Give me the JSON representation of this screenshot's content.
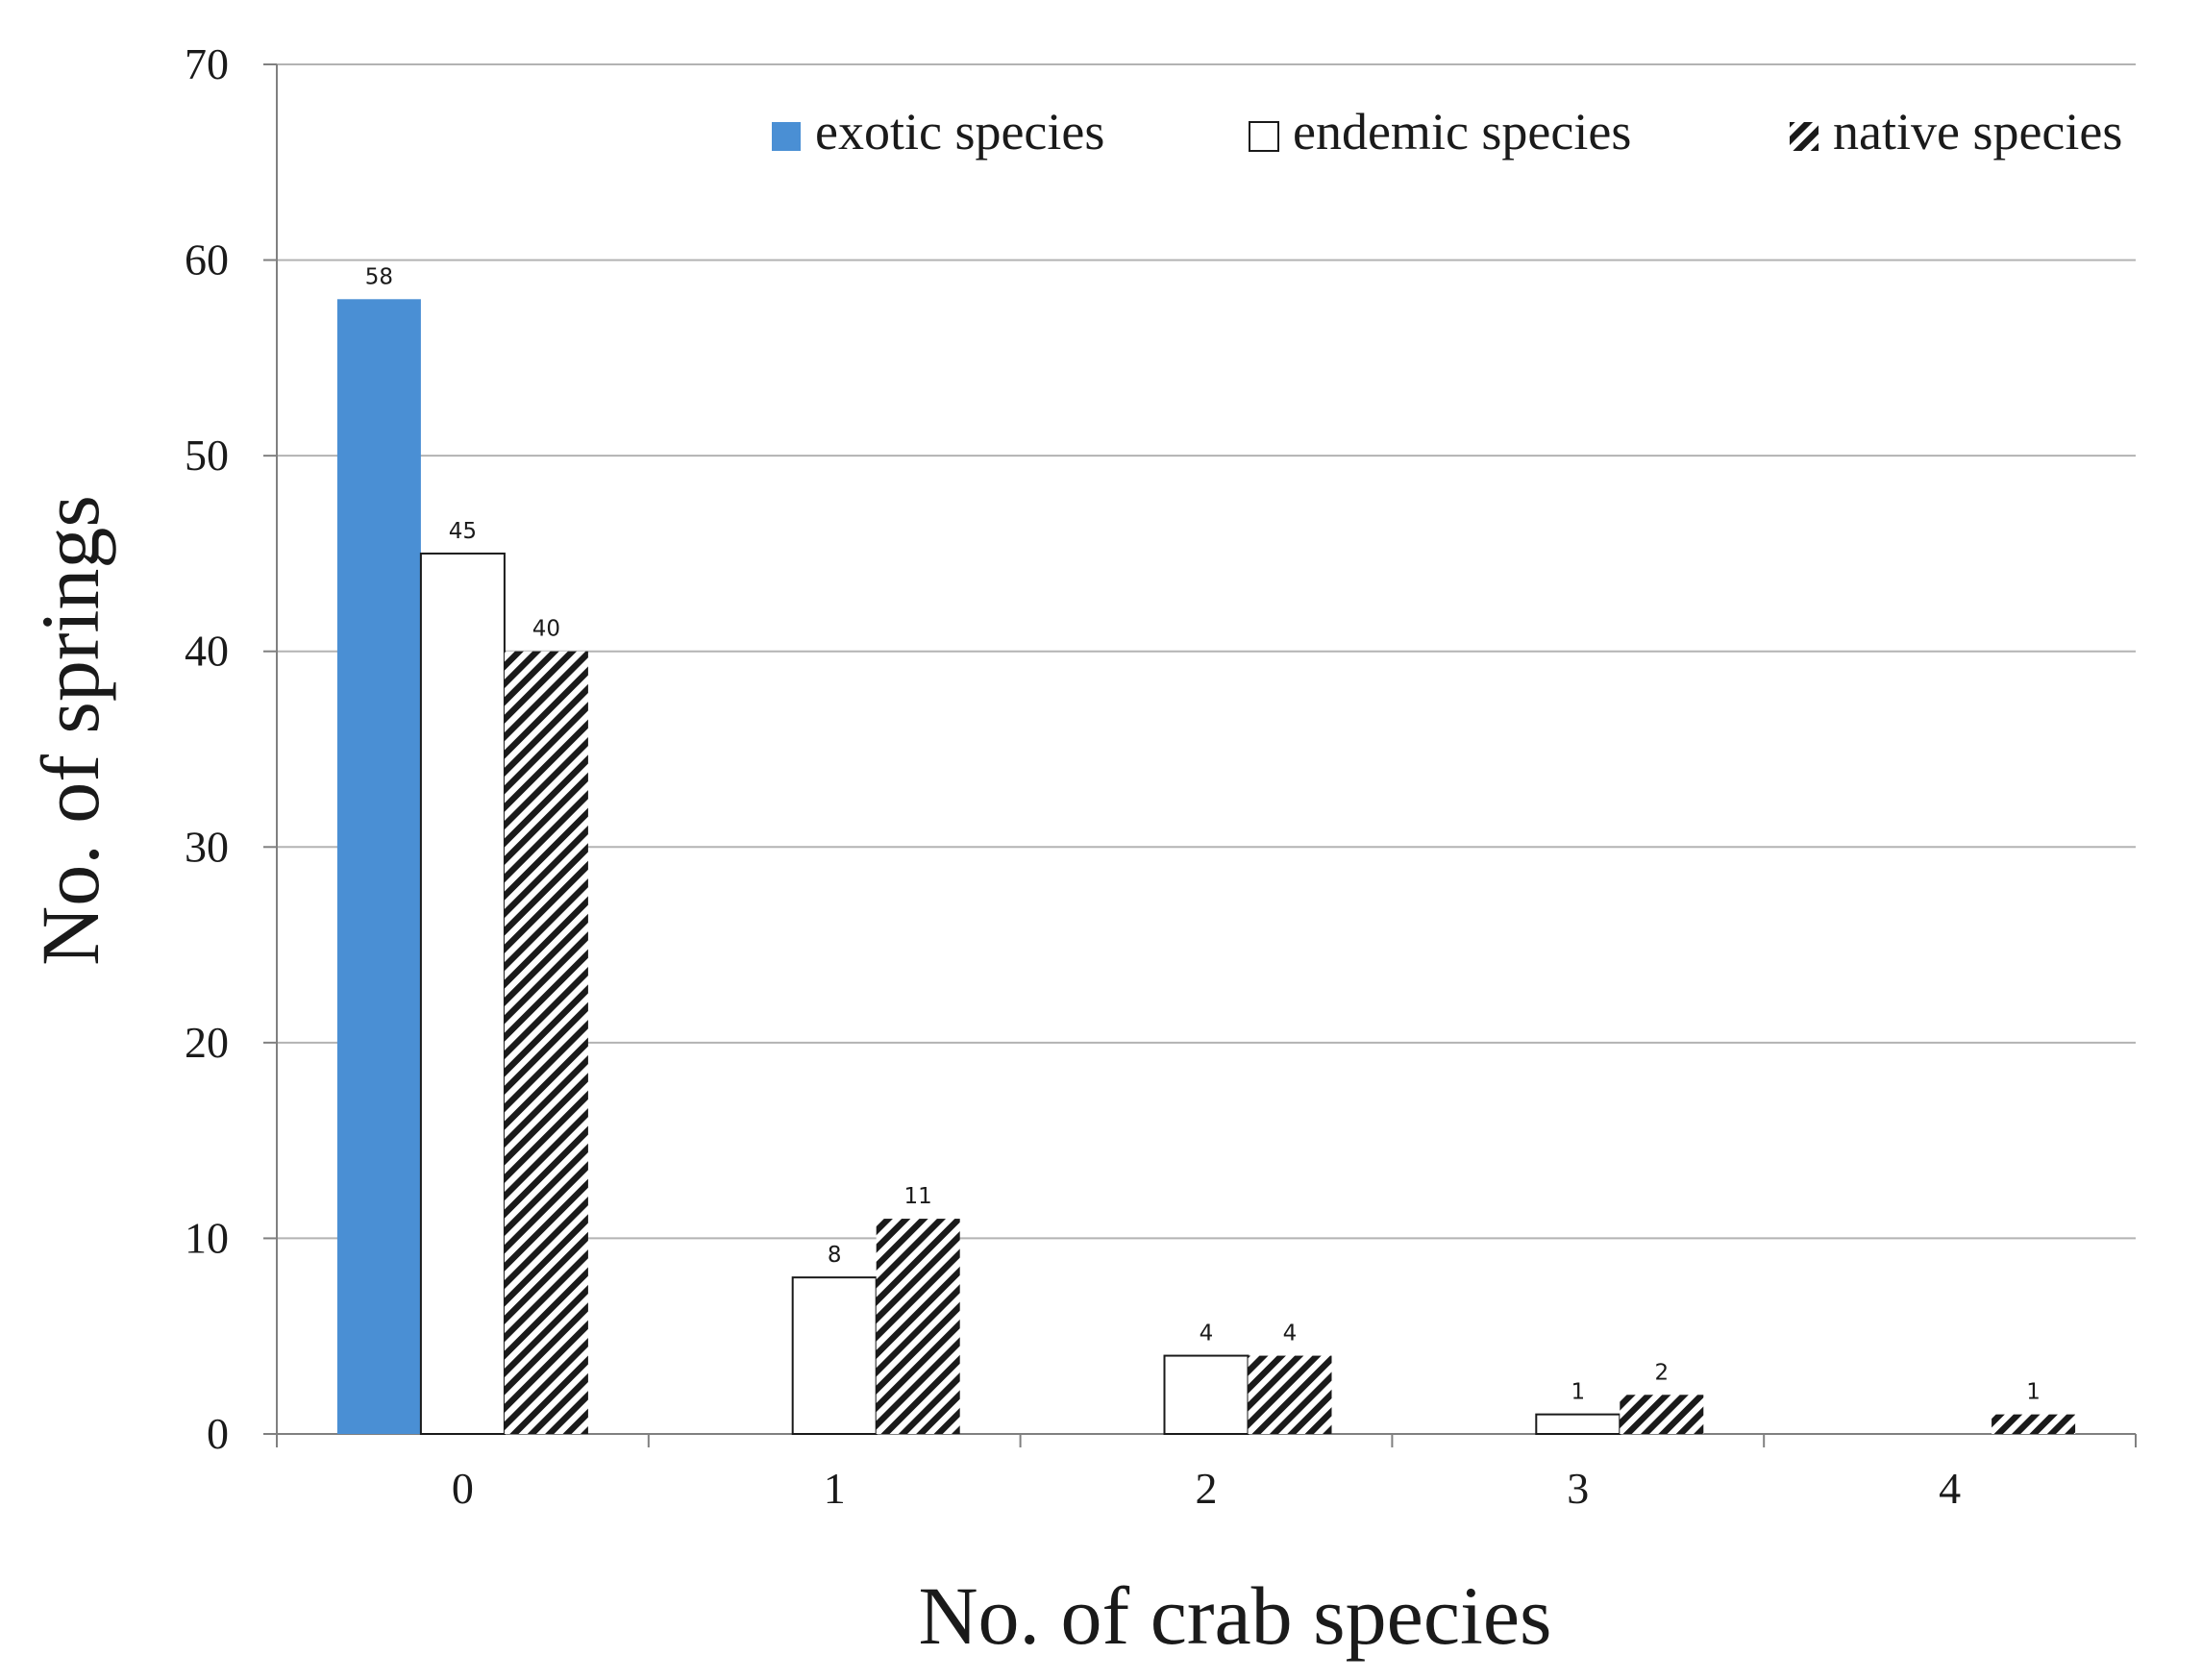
{
  "chart_data": {
    "type": "bar",
    "title": "",
    "xlabel": "No. of crab species",
    "ylabel": "No. of springs",
    "categories": [
      "0",
      "1",
      "2",
      "3",
      "4"
    ],
    "ylim": [
      0,
      70
    ],
    "yticks": [
      0,
      10,
      20,
      30,
      40,
      50,
      60,
      70
    ],
    "grid": true,
    "legend_position": "top-right",
    "series": [
      {
        "name": "exotic species",
        "style": "solid",
        "color": "#4a8fd4",
        "values": [
          58,
          null,
          null,
          null,
          null
        ]
      },
      {
        "name": "endemic species",
        "style": "outline",
        "color": "#ffffff",
        "values": [
          45,
          8,
          4,
          1,
          null
        ]
      },
      {
        "name": "native species",
        "style": "hatched",
        "color": "#1a1a1a",
        "values": [
          40,
          11,
          4,
          2,
          1
        ]
      }
    ]
  }
}
